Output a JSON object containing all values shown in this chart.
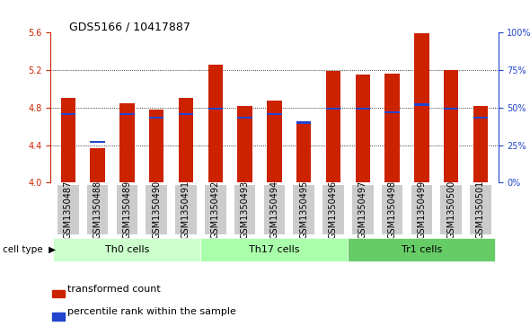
{
  "title": "GDS5166 / 10417887",
  "samples": [
    "GSM1350487",
    "GSM1350488",
    "GSM1350489",
    "GSM1350490",
    "GSM1350491",
    "GSM1350492",
    "GSM1350493",
    "GSM1350494",
    "GSM1350495",
    "GSM1350496",
    "GSM1350497",
    "GSM1350498",
    "GSM1350499",
    "GSM1350500",
    "GSM1350501"
  ],
  "red_values": [
    4.9,
    4.37,
    4.85,
    4.78,
    4.9,
    5.26,
    4.82,
    4.87,
    4.63,
    5.19,
    5.15,
    5.16,
    5.59,
    5.2,
    4.82
  ],
  "blue_values": [
    4.72,
    4.42,
    4.72,
    4.68,
    4.72,
    4.78,
    4.68,
    4.72,
    4.63,
    4.78,
    4.78,
    4.74,
    4.82,
    4.78,
    4.68
  ],
  "ylim_left": [
    4.0,
    5.6
  ],
  "ylim_right": [
    0,
    100
  ],
  "yticks_left": [
    4.0,
    4.4,
    4.8,
    5.2,
    5.6
  ],
  "yticks_right": [
    0,
    25,
    50,
    75,
    100
  ],
  "ytick_labels_right": [
    "0%",
    "25%",
    "50%",
    "75%",
    "100%"
  ],
  "group_colors": [
    "#ccffcc",
    "#aaffaa",
    "#66cc66"
  ],
  "groups": [
    {
      "label": "Th0 cells",
      "start": 0,
      "end": 4
    },
    {
      "label": "Th17 cells",
      "start": 5,
      "end": 9
    },
    {
      "label": "Tr1 cells",
      "start": 10,
      "end": 14
    }
  ],
  "bar_color": "#cc2200",
  "blue_color": "#2244cc",
  "bar_width": 0.5,
  "base": 4.0,
  "legend_labels": [
    "transformed count",
    "percentile rank within the sample"
  ],
  "cell_type_label": "cell type",
  "left_axis_color": "#cc2200",
  "right_axis_color": "#2244cc",
  "grid_color": "#000000",
  "bg_color": "#ffffff",
  "xticklabel_bg": "#cccccc",
  "title_fontsize": 9,
  "tick_fontsize": 7,
  "legend_fontsize": 8,
  "cell_type_fontsize": 8
}
